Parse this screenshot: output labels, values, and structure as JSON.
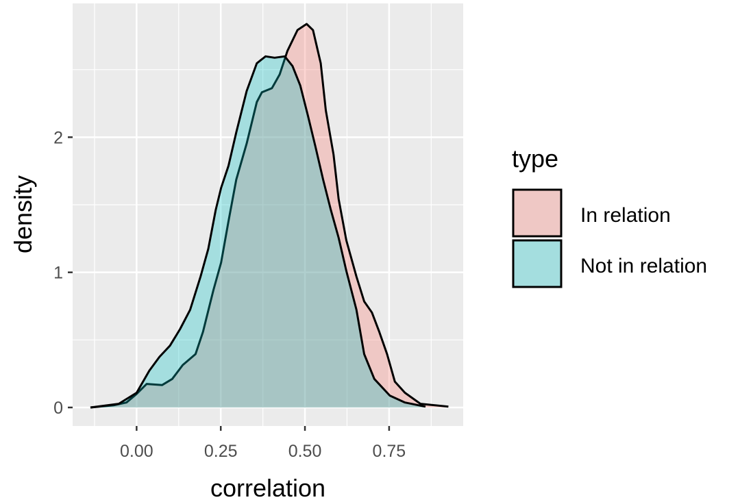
{
  "chart_data": {
    "type": "area",
    "subtype": "density",
    "xlabel": "correlation",
    "ylabel": "density",
    "xlim": [
      -0.19,
      0.97
    ],
    "ylim": [
      -0.137,
      2.99
    ],
    "x_ticks": [
      0.0,
      0.25,
      0.5,
      0.75
    ],
    "x_tick_labels": [
      "0.00",
      "0.25",
      "0.50",
      "0.75"
    ],
    "y_ticks": [
      0,
      1,
      2
    ],
    "y_tick_labels": [
      "0",
      "1",
      "2"
    ],
    "grid": true,
    "legend": {
      "title": "type",
      "position": "right",
      "entries": [
        "In relation",
        "Not in relation"
      ]
    },
    "series": [
      {
        "name": "In relation",
        "color": "#F8766D",
        "alpha": 0.3,
        "x": [
          -0.137,
          -0.068,
          -0.03,
          0.0,
          0.03,
          0.076,
          0.106,
          0.137,
          0.175,
          0.197,
          0.228,
          0.251,
          0.273,
          0.296,
          0.327,
          0.357,
          0.372,
          0.402,
          0.425,
          0.448,
          0.478,
          0.505,
          0.524,
          0.547,
          0.562,
          0.585,
          0.6,
          0.623,
          0.653,
          0.676,
          0.699,
          0.721,
          0.744,
          0.767,
          0.797,
          0.843,
          0.926
        ],
        "y": [
          0,
          0.016,
          0.037,
          0.1,
          0.174,
          0.166,
          0.211,
          0.314,
          0.395,
          0.559,
          0.867,
          1.072,
          1.379,
          1.686,
          1.953,
          2.26,
          2.332,
          2.363,
          2.465,
          2.639,
          2.793,
          2.838,
          2.793,
          2.547,
          2.199,
          1.871,
          1.543,
          1.236,
          0.969,
          0.785,
          0.703,
          0.559,
          0.395,
          0.191,
          0.109,
          0.027,
          0.006
        ]
      },
      {
        "name": "Not in relation",
        "color": "#00BFC4",
        "alpha": 0.3,
        "x": [
          -0.137,
          -0.053,
          0.0,
          0.038,
          0.068,
          0.099,
          0.129,
          0.159,
          0.19,
          0.213,
          0.235,
          0.251,
          0.273,
          0.296,
          0.327,
          0.357,
          0.383,
          0.41,
          0.44,
          0.463,
          0.486,
          0.509,
          0.531,
          0.554,
          0.577,
          0.6,
          0.623,
          0.653,
          0.676,
          0.706,
          0.752,
          0.797,
          0.858
        ],
        "y": [
          0,
          0.027,
          0.109,
          0.273,
          0.375,
          0.457,
          0.58,
          0.723,
          0.969,
          1.174,
          1.461,
          1.625,
          1.789,
          2.035,
          2.342,
          2.547,
          2.598,
          2.588,
          2.598,
          2.527,
          2.383,
          2.158,
          1.932,
          1.686,
          1.461,
          1.256,
          1.01,
          0.723,
          0.395,
          0.211,
          0.088,
          0.037,
          0.006
        ]
      }
    ]
  }
}
